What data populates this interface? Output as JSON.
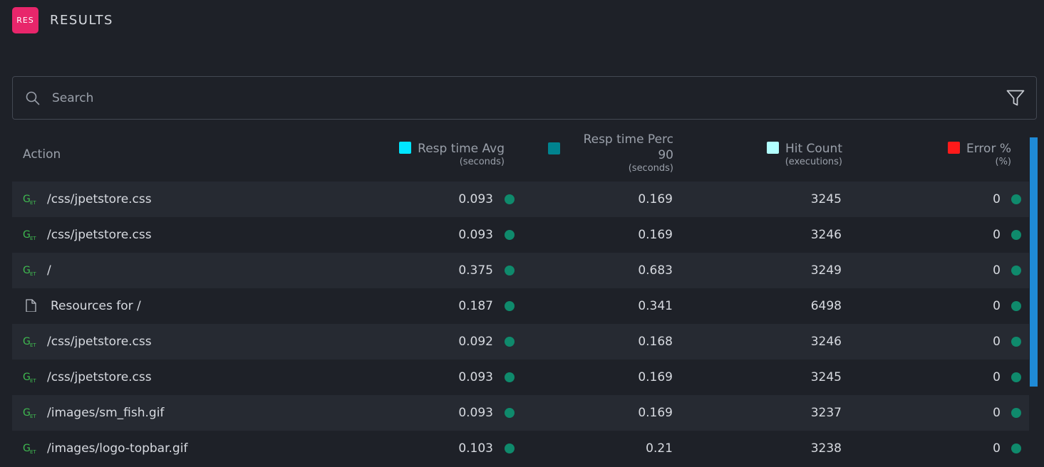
{
  "header": {
    "badge": "RES",
    "title": "RESULTS"
  },
  "search": {
    "placeholder": "Search",
    "value": ""
  },
  "icons": {
    "search": "search-icon",
    "filter": "filter-icon",
    "get_method": "get-method-icon",
    "resource": "file-icon"
  },
  "colors": {
    "badge": "#e8266b",
    "resp_avg": "#00e5ff",
    "resp_perc": "#00838f",
    "hit_count": "#b2ffff",
    "error": "#ff1a1a",
    "status_dot": "#0f8a6c",
    "scrollbar": "#1f8ad6"
  },
  "columns": {
    "action": {
      "label": "Action"
    },
    "resp_avg": {
      "label": "Resp time Avg",
      "unit": "(seconds)"
    },
    "resp_perc": {
      "label_line1": "Resp time Perc",
      "label_line2": "90",
      "unit": "(seconds)"
    },
    "hit_count": {
      "label": "Hit Count",
      "unit": "(executions)"
    },
    "error": {
      "label": "Error %",
      "unit": "(%)"
    }
  },
  "rows": [
    {
      "type": "GET",
      "action": "/css/jpetstore.css",
      "resp_avg": "0.093",
      "resp_perc": "0.169",
      "hit_count": "3245",
      "error": "0"
    },
    {
      "type": "GET",
      "action": "/css/jpetstore.css",
      "resp_avg": "0.093",
      "resp_perc": "0.169",
      "hit_count": "3246",
      "error": "0"
    },
    {
      "type": "GET",
      "action": "/",
      "resp_avg": "0.375",
      "resp_perc": "0.683",
      "hit_count": "3249",
      "error": "0"
    },
    {
      "type": "RESOURCE",
      "action": "Resources for /",
      "resp_avg": "0.187",
      "resp_perc": "0.341",
      "hit_count": "6498",
      "error": "0"
    },
    {
      "type": "GET",
      "action": "/css/jpetstore.css",
      "resp_avg": "0.092",
      "resp_perc": "0.168",
      "hit_count": "3246",
      "error": "0"
    },
    {
      "type": "GET",
      "action": "/css/jpetstore.css",
      "resp_avg": "0.093",
      "resp_perc": "0.169",
      "hit_count": "3245",
      "error": "0"
    },
    {
      "type": "GET",
      "action": "/images/sm_fish.gif",
      "resp_avg": "0.093",
      "resp_perc": "0.169",
      "hit_count": "3237",
      "error": "0"
    },
    {
      "type": "GET",
      "action": "/images/logo-topbar.gif",
      "resp_avg": "0.103",
      "resp_perc": "0.21",
      "hit_count": "3238",
      "error": "0"
    }
  ]
}
